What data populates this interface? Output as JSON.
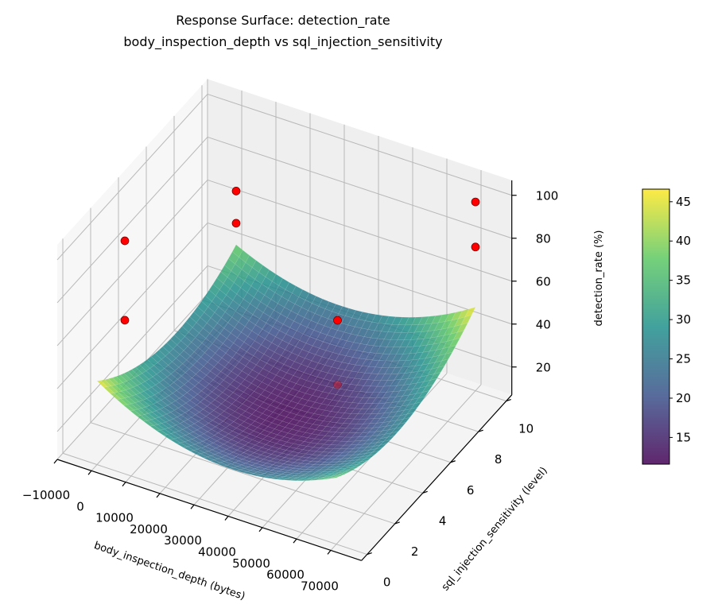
{
  "chart_data": {
    "type": "surface3d",
    "title": "Response Surface: detection_rate",
    "subtitle": "body_inspection_depth vs sql_injection_sensitivity",
    "xlabel": "body_inspection_depth (bytes)",
    "ylabel": "sql_injection_sensitivity (level)",
    "zlabel": "detection_rate (%)",
    "xlim": [
      -10000,
      79000
    ],
    "ylim": [
      -0.4,
      10.4
    ],
    "zlim": [
      7,
      107
    ],
    "x_ticks": [
      -10000,
      0,
      10000,
      20000,
      30000,
      40000,
      50000,
      60000,
      70000
    ],
    "x_tick_labels": [
      "−10000",
      "0",
      "10000",
      "20000",
      "30000",
      "40000",
      "50000",
      "60000",
      "70000"
    ],
    "y_ticks": [
      0,
      2,
      4,
      6,
      8,
      10
    ],
    "y_tick_labels": [
      "0",
      "2",
      "4",
      "6",
      "8",
      "10"
    ],
    "z_ticks": [
      20,
      40,
      60,
      80,
      100
    ],
    "z_tick_labels": [
      "20",
      "40",
      "60",
      "80",
      "100"
    ],
    "grid": true,
    "colormap": "viridis",
    "surface": {
      "x": [
        0,
        17500,
        35000,
        52500,
        70000
      ],
      "y": [
        0,
        2.5,
        5,
        7.5,
        10
      ],
      "z": [
        [
          46,
          32,
          26,
          28,
          38
        ],
        [
          33.5,
          20.5,
          15.5,
          18.5,
          29.5
        ],
        [
          28,
          16,
          12,
          16,
          28
        ],
        [
          29.5,
          18.5,
          15.5,
          20.5,
          33.5
        ],
        [
          38,
          28,
          26,
          32,
          46
        ]
      ]
    },
    "points": {
      "color": "#ff0000",
      "x": [
        0,
        0,
        0,
        0,
        50000,
        50000,
        70000,
        70000
      ],
      "y": [
        2,
        2,
        10,
        10,
        5,
        5,
        10,
        10
      ],
      "z": [
        97,
        60,
        63,
        48,
        65,
        35,
        95,
        74
      ]
    },
    "colorbar": {
      "range": [
        11.6,
        46.6
      ],
      "ticks": [
        15,
        20,
        25,
        30,
        35,
        40,
        45
      ],
      "tick_labels": [
        "15",
        "20",
        "25",
        "30",
        "35",
        "40",
        "45"
      ]
    }
  }
}
